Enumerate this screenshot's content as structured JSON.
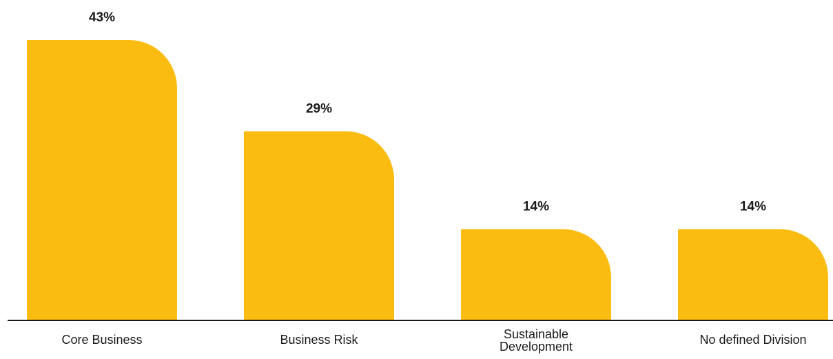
{
  "chart_data": {
    "type": "bar",
    "categories": [
      "Core Business",
      "Business Risk",
      "Sustainable Development",
      "No defined Division"
    ],
    "category_lines": [
      [
        "Core Business"
      ],
      [
        "Business Risk"
      ],
      [
        "Sustainable",
        "Development"
      ],
      [
        "No defined Division"
      ]
    ],
    "values": [
      43,
      29,
      14,
      14
    ],
    "value_labels": [
      "43%",
      "29%",
      "14%",
      "14%"
    ],
    "unit": "%",
    "ylim": [
      0,
      43
    ],
    "bar_color": "#FBBC12",
    "axis_color": "#1a1a1a",
    "grid": false,
    "legend": "none"
  }
}
